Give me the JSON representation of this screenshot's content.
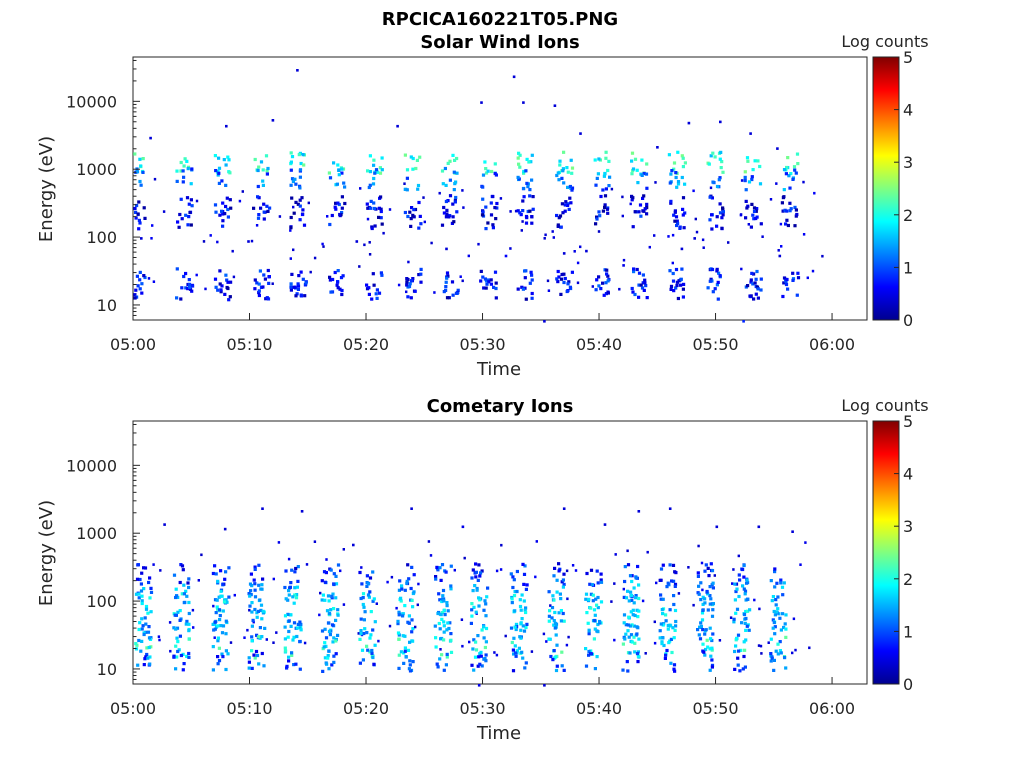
{
  "figure": {
    "title": "RPCICA160221T05.PNG",
    "colorbar_label": "Log counts",
    "colorbar_ticks": [
      "0",
      "1",
      "2",
      "3",
      "4",
      "5"
    ],
    "colormap": [
      "#00008f",
      "#0000ff",
      "#0080ff",
      "#00ffff",
      "#80ff80",
      "#ffff00",
      "#ff8000",
      "#ff0000",
      "#800000"
    ]
  },
  "chart_data": [
    {
      "type": "heatmap",
      "title": "Solar Wind Ions",
      "xlabel": "Time",
      "ylabel": "Energy (eV)",
      "xticks": [
        "05:00",
        "05:10",
        "05:20",
        "05:30",
        "05:40",
        "05:50",
        "06:00"
      ],
      "yticks": [
        "10",
        "100",
        "1000",
        "10000"
      ],
      "xlim": [
        "05:00",
        "06:03"
      ],
      "ylim": [
        6,
        45000
      ],
      "yscale": "log",
      "clim": [
        0,
        5
      ],
      "grid": false,
      "burst_times_min": [
        0.2,
        4.3,
        7.6,
        10.9,
        14.1,
        17.4,
        20.6,
        23.9,
        27.1,
        30.4,
        33.6,
        36.9,
        40.1,
        43.3,
        46.6,
        49.9,
        53.1,
        56.3
      ],
      "bursts": [
        {
          "e": 1300,
          "v": 2.0
        },
        {
          "e": 750,
          "v": 1.2
        },
        {
          "e": 300,
          "v": 0.6
        },
        {
          "e": 200,
          "v": 0.5
        },
        {
          "e": 25,
          "v": 0.7
        },
        {
          "e": 18,
          "v": 0.6
        }
      ],
      "scatter": [
        {
          "t": 14.0,
          "e": 30000,
          "v": 0.4
        },
        {
          "t": 32.6,
          "e": 24000,
          "v": 0.4
        },
        {
          "t": 29.8,
          "e": 10000,
          "v": 0.4
        },
        {
          "t": 33.4,
          "e": 10000,
          "v": 0.4
        },
        {
          "t": 36.1,
          "e": 9000,
          "v": 0.4
        },
        {
          "t": 7.9,
          "e": 4500,
          "v": 0.4
        },
        {
          "t": 11.9,
          "e": 5500,
          "v": 0.4
        },
        {
          "t": 22.6,
          "e": 4500,
          "v": 0.4
        },
        {
          "t": 47.6,
          "e": 5000,
          "v": 0.4
        },
        {
          "t": 50.3,
          "e": 5200,
          "v": 0.4
        },
        {
          "t": 52.9,
          "e": 3500,
          "v": 0.4
        },
        {
          "t": 38.3,
          "e": 3500,
          "v": 0.4
        },
        {
          "t": 1.4,
          "e": 3000,
          "v": 0.4
        },
        {
          "t": 44.9,
          "e": 2200,
          "v": 0.4
        },
        {
          "t": 55.2,
          "e": 2100,
          "v": 0.4
        },
        {
          "t": 52.3,
          "e": 6,
          "v": 0.8
        },
        {
          "t": 35.2,
          "e": 6,
          "v": 0.4
        },
        {
          "t": 36.9,
          "e": 60,
          "v": 0.4
        },
        {
          "t": 26.8,
          "e": 70,
          "v": 0.4
        },
        {
          "t": 31.9,
          "e": 55,
          "v": 0.6
        },
        {
          "t": 38.8,
          "e": 65,
          "v": 0.4
        },
        {
          "t": 42.0,
          "e": 40,
          "v": 0.5
        },
        {
          "t": 47.0,
          "e": 70,
          "v": 0.4
        },
        {
          "t": 55.4,
          "e": 55,
          "v": 0.4
        },
        {
          "t": 48.1,
          "e": 100,
          "v": 0.4
        },
        {
          "t": 19.1,
          "e": 90,
          "v": 0.4
        },
        {
          "t": 9.8,
          "e": 90,
          "v": 0.4
        },
        {
          "t": 0.6,
          "e": 100,
          "v": 0.4
        }
      ]
    },
    {
      "type": "heatmap",
      "title": "Cometary Ions",
      "xlabel": "Time",
      "ylabel": "Energy (eV)",
      "xticks": [
        "05:00",
        "05:10",
        "05:20",
        "05:30",
        "05:40",
        "05:50",
        "06:00"
      ],
      "yticks": [
        "10",
        "100",
        "1000",
        "10000"
      ],
      "xlim": [
        "05:00",
        "06:03"
      ],
      "ylim": [
        6,
        45000
      ],
      "yscale": "log",
      "clim": [
        0,
        5
      ],
      "grid": false,
      "burst_times_min": [
        0.8,
        4.0,
        7.4,
        10.5,
        13.6,
        16.8,
        20.0,
        23.3,
        26.5,
        29.6,
        33.0,
        36.2,
        39.4,
        42.6,
        45.8,
        49.0,
        52.1,
        55.3
      ],
      "bursts": [
        {
          "e": 260,
          "v": 0.8
        },
        {
          "e": 150,
          "v": 1.3
        },
        {
          "e": 95,
          "v": 1.6
        },
        {
          "e": 55,
          "v": 1.5
        },
        {
          "e": 38,
          "v": 1.4
        },
        {
          "e": 22,
          "v": 1.9
        },
        {
          "e": 14,
          "v": 1.0
        }
      ],
      "scatter": [
        {
          "t": 11.0,
          "e": 2400,
          "v": 0.4
        },
        {
          "t": 14.4,
          "e": 2200,
          "v": 0.4
        },
        {
          "t": 23.8,
          "e": 2400,
          "v": 0.4
        },
        {
          "t": 36.9,
          "e": 2400,
          "v": 0.4
        },
        {
          "t": 43.3,
          "e": 2200,
          "v": 0.4
        },
        {
          "t": 46.0,
          "e": 2400,
          "v": 0.4
        },
        {
          "t": 2.6,
          "e": 1400,
          "v": 0.4
        },
        {
          "t": 7.8,
          "e": 1200,
          "v": 0.4
        },
        {
          "t": 28.2,
          "e": 1300,
          "v": 0.5
        },
        {
          "t": 40.4,
          "e": 1400,
          "v": 0.4
        },
        {
          "t": 50.0,
          "e": 1300,
          "v": 0.4
        },
        {
          "t": 53.6,
          "e": 1300,
          "v": 0.4
        },
        {
          "t": 56.5,
          "e": 1100,
          "v": 0.4
        },
        {
          "t": 18.8,
          "e": 700,
          "v": 0.4
        },
        {
          "t": 29.6,
          "e": 6,
          "v": 0.5
        },
        {
          "t": 35.2,
          "e": 6,
          "v": 0.4
        }
      ]
    }
  ]
}
